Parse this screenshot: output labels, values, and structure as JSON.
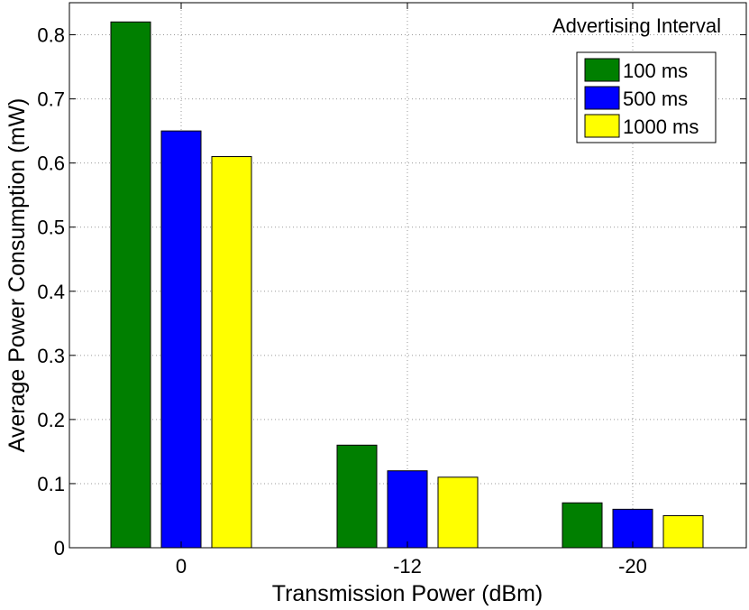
{
  "chart_data": {
    "type": "bar",
    "title": "",
    "xlabel": "Transmission Power (dBm)",
    "ylabel": "Average Power Consumption (mW)",
    "categories": [
      "0",
      "-12",
      "-20"
    ],
    "series": [
      {
        "name": "100 ms",
        "color": "#007f00",
        "values": [
          0.82,
          0.16,
          0.07
        ]
      },
      {
        "name": "500 ms",
        "color": "#0000ff",
        "values": [
          0.65,
          0.12,
          0.06
        ]
      },
      {
        "name": "1000 ms",
        "color": "#ffff00",
        "values": [
          0.61,
          0.11,
          0.05
        ]
      }
    ],
    "ylim": [
      0,
      0.85
    ],
    "yticks": [
      "0",
      "0.1",
      "0.2",
      "0.3",
      "0.4",
      "0.5",
      "0.6",
      "0.7",
      "0.8"
    ],
    "grid": true,
    "legend": {
      "title": "Advertising Interval",
      "position": "top-right"
    }
  }
}
